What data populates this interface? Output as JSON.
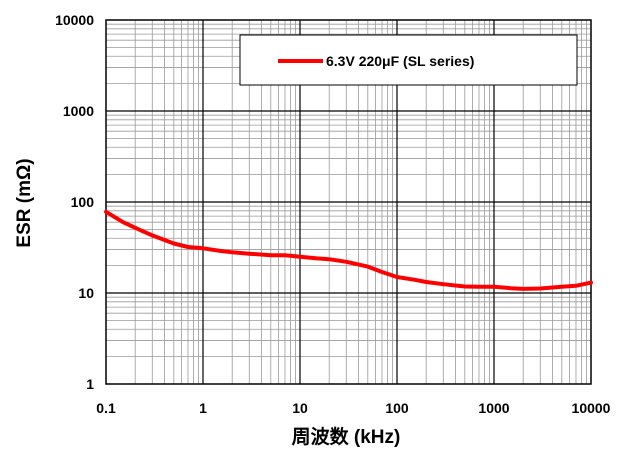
{
  "chart_data": {
    "type": "line",
    "x_scale": "log",
    "y_scale": "log",
    "xlim": [
      0.1,
      10000
    ],
    "ylim": [
      1,
      10000
    ],
    "xlabel": "周波数 (kHz)",
    "ylabel": "ESR (mΩ)",
    "x_ticks": [
      {
        "value": 0.1,
        "label": "0.1"
      },
      {
        "value": 1,
        "label": "1"
      },
      {
        "value": 10,
        "label": "10"
      },
      {
        "value": 100,
        "label": "100"
      },
      {
        "value": 1000,
        "label": "1000"
      },
      {
        "value": 10000,
        "label": "10000"
      }
    ],
    "y_ticks": [
      {
        "value": 1,
        "label": "1"
      },
      {
        "value": 10,
        "label": "10"
      },
      {
        "value": 100,
        "label": "100"
      },
      {
        "value": 1000,
        "label": "1000"
      },
      {
        "value": 10000,
        "label": "10000"
      }
    ],
    "grid": true,
    "legend_position": "top-right",
    "series": [
      {
        "name": "6.3V 220μF (SL series)",
        "color": "#ff0000",
        "x": [
          0.1,
          0.15,
          0.2,
          0.3,
          0.5,
          0.7,
          1,
          1.5,
          2,
          3,
          5,
          7,
          10,
          15,
          20,
          30,
          50,
          70,
          100,
          150,
          200,
          300,
          500,
          700,
          1000,
          1500,
          2000,
          3000,
          5000,
          7000,
          10000
        ],
        "y": [
          78,
          60,
          52,
          43,
          35,
          32,
          31,
          29,
          28,
          27,
          26,
          26,
          25,
          24,
          23.5,
          22,
          19.5,
          17,
          15,
          14,
          13.2,
          12.5,
          11.8,
          11.7,
          11.7,
          11.3,
          11.1,
          11.2,
          11.7,
          12,
          13
        ]
      }
    ]
  }
}
